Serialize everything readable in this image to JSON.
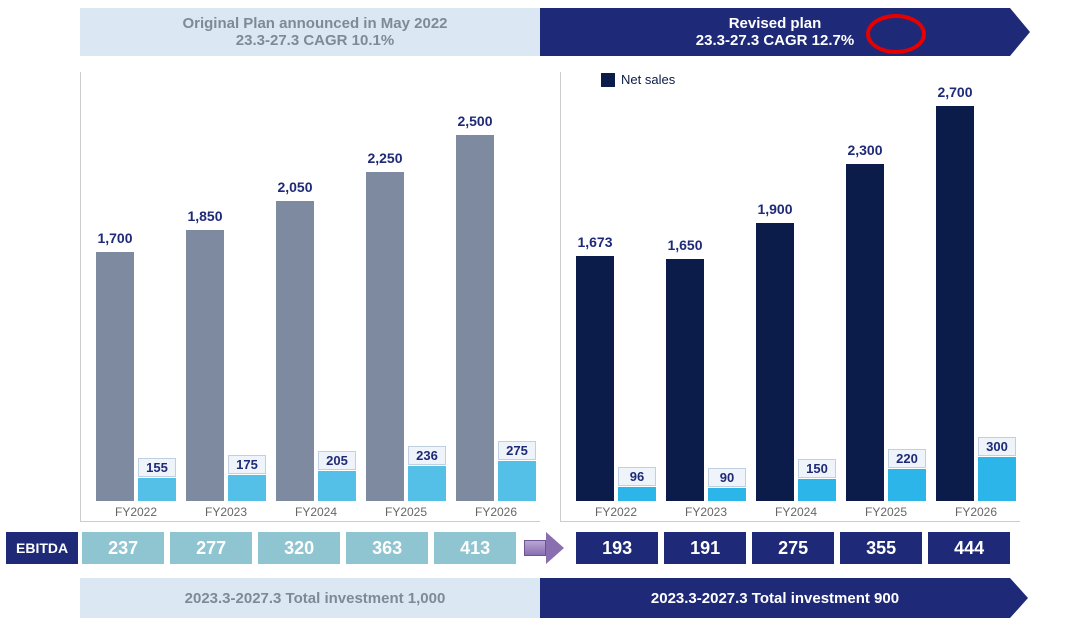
{
  "header": {
    "original": {
      "line1": "Original Plan announced in May 2022",
      "line2": "23.3-27.3   CAGR   10.1%"
    },
    "revised": {
      "line1": "Revised plan",
      "line2": "23.3-27.3   CAGR   12.7%"
    }
  },
  "legend": {
    "netsales": "Net sales"
  },
  "charts": {
    "yMax": 2800,
    "categories": [
      "FY2022",
      "FY2023",
      "FY2024",
      "FY2025",
      "FY2026"
    ],
    "original": {
      "netsales": {
        "values": [
          1700,
          1850,
          2050,
          2250,
          2500
        ],
        "color": "#7d8aa0",
        "labelColor": "#1e2a78"
      },
      "op": {
        "values": [
          155,
          175,
          205,
          236,
          275
        ],
        "color": "#54c0e8",
        "boxed": true
      }
    },
    "revised": {
      "netsales": {
        "values": [
          1673,
          1650,
          1900,
          2300,
          2700
        ],
        "color": "#0b1b4a",
        "labelColor": "#1e2a78"
      },
      "op": {
        "values": [
          96,
          90,
          150,
          220,
          300
        ],
        "color": "#2cb5e8",
        "boxed": true
      }
    },
    "groupSpacing": 90,
    "groupOffset": 15,
    "barGroupWidth": 80
  },
  "ebitda": {
    "label": "EBITDA",
    "original": [
      237,
      277,
      320,
      363,
      413
    ],
    "revised": [
      193,
      191,
      275,
      355,
      444
    ]
  },
  "footer": {
    "original": "2023.3-2027.3   Total investment   1,000",
    "revised": "2023.3-2027.3   Total investment   900"
  },
  "style": {
    "originalArrowBg": "#dbe7f2",
    "revisedArrowBg": "#1e2a78",
    "ebitdaLeftCell": "#8fc4d1",
    "ebitdaRightCell": "#1e2a78",
    "circleColor": "#e60000"
  }
}
